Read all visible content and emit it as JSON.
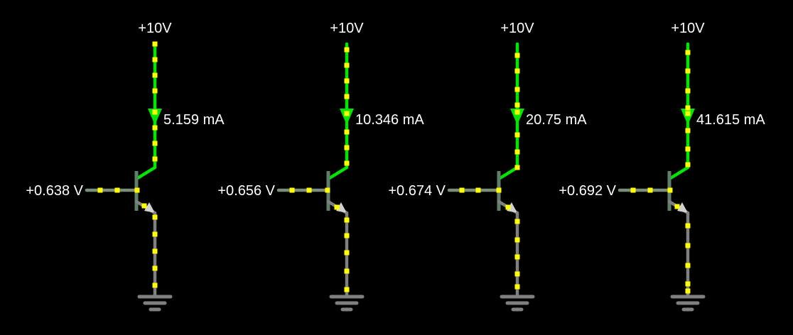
{
  "colors": {
    "background": "#000000",
    "active_wire": "#00e600",
    "inactive_wire": "#808080",
    "base_wire": "#7a8f7a",
    "transistor_body": "#5f7f6a",
    "current_dot": "#ffff00",
    "text": "#ffffff"
  },
  "circuits": [
    {
      "supply_label": "+10V",
      "current_label": "5.159 mA",
      "base_voltage_label": "+0.638 V"
    },
    {
      "supply_label": "+10V",
      "current_label": "10.346 mA",
      "base_voltage_label": "+0.656 V"
    },
    {
      "supply_label": "+10V",
      "current_label": "20.75 mA",
      "base_voltage_label": "+0.674 V"
    },
    {
      "supply_label": "+10V",
      "current_label": "41.615 mA",
      "base_voltage_label": "+0.692 V"
    }
  ]
}
